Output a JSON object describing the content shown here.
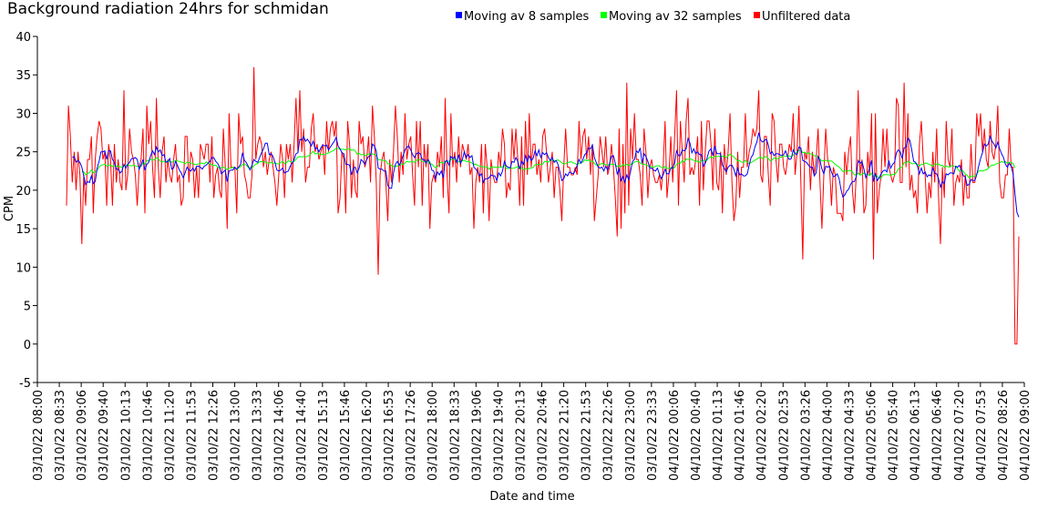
{
  "chart_data": {
    "type": "line",
    "title": "Background radiation 24hrs for schmidan",
    "xlabel": "Date and time",
    "ylabel": "CPM",
    "ylim": [
      -5,
      40
    ],
    "yticks": [
      -5,
      0,
      5,
      10,
      15,
      20,
      25,
      30,
      35,
      40
    ],
    "grid": false,
    "legend_placement": "top",
    "x_tick_labels": [
      "03/10/22 08:00",
      "03/10/22 08:33",
      "03/10/22 09:06",
      "03/10/22 09:40",
      "03/10/22 10:13",
      "03/10/22 10:46",
      "03/10/22 11:20",
      "03/10/22 11:53",
      "03/10/22 12:26",
      "03/10/22 13:00",
      "03/10/22 13:33",
      "03/10/22 14:06",
      "03/10/22 14:40",
      "03/10/22 15:13",
      "03/10/22 15:46",
      "03/10/22 16:20",
      "03/10/22 16:53",
      "03/10/22 17:26",
      "03/10/22 18:00",
      "03/10/22 18:33",
      "03/10/22 19:06",
      "03/10/22 19:40",
      "03/10/22 20:13",
      "03/10/22 20:46",
      "03/10/22 21:20",
      "03/10/22 21:53",
      "03/10/22 22:26",
      "03/10/22 23:00",
      "03/10/22 23:33",
      "04/10/22 00:06",
      "04/10/22 00:40",
      "04/10/22 01:13",
      "04/10/22 01:46",
      "04/10/22 02:20",
      "04/10/22 02:53",
      "04/10/22 03:26",
      "04/10/22 04:00",
      "04/10/22 04:33",
      "04/10/22 05:06",
      "04/10/22 05:40",
      "04/10/22 06:13",
      "04/10/22 06:46",
      "04/10/22 07:20",
      "04/10/22 07:53",
      "04/10/22 08:26",
      "04/10/22 09:00"
    ],
    "sample_count": 496,
    "series": [
      {
        "name": "Moving av 8 samples",
        "color": "#0000ff"
      },
      {
        "name": "Moving av 32 samples",
        "color": "#00ff00"
      },
      {
        "name": "Unfiltered data",
        "color": "#ff0000",
        "notes_values_last": [
          0,
          0,
          14
        ]
      }
    ]
  }
}
